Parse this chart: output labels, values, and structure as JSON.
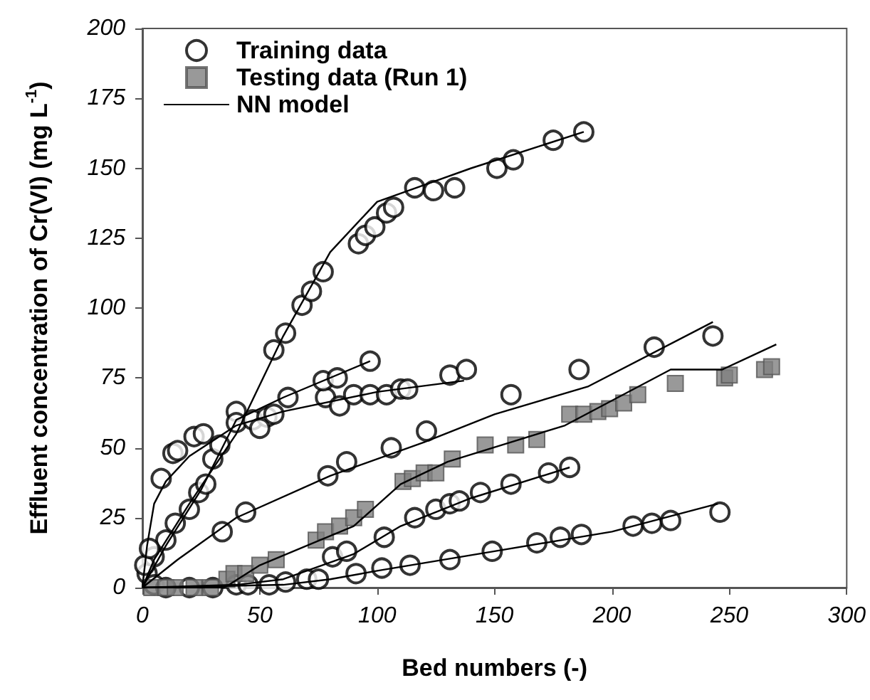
{
  "chart_data": {
    "type": "scatter",
    "xlabel": "Bed numbers (-)",
    "ylabel": "Effluent concentration of Cr(VI) (mg L$^{-1}$)",
    "xlim": [
      0,
      300
    ],
    "ylim": [
      0,
      200
    ],
    "xticks": [
      0,
      50,
      100,
      150,
      200,
      250,
      300
    ],
    "yticks": [
      0,
      25,
      50,
      75,
      100,
      125,
      150,
      175,
      200
    ],
    "legend": "top left",
    "series": [
      {
        "name": "Training data",
        "marker": "circle",
        "color": "#000000",
        "x": [
          2,
          5,
          10,
          14,
          20,
          24,
          27,
          30,
          33,
          40,
          56,
          61,
          68,
          72,
          77,
          92,
          95,
          99,
          104,
          107,
          116,
          124,
          133,
          151,
          158,
          175,
          188,
          8,
          13,
          15,
          22,
          26,
          40,
          47,
          53,
          56,
          62,
          78,
          84,
          90,
          97,
          104,
          110,
          113,
          131,
          138,
          50,
          77,
          83,
          97,
          34,
          44,
          79,
          87,
          106,
          121,
          157,
          186,
          218,
          243,
          54,
          61,
          70,
          75,
          81,
          87,
          103,
          116,
          125,
          131,
          135,
          144,
          157,
          173,
          182,
          91,
          102,
          114,
          131,
          149,
          168,
          178,
          187,
          209,
          217,
          225,
          246,
          1,
          3,
          5,
          10,
          20,
          30,
          40,
          45
        ],
        "values": [
          5,
          11,
          17,
          23,
          28,
          34,
          37,
          46,
          51,
          63,
          85,
          91,
          101,
          106,
          113,
          123,
          126,
          129,
          134,
          136,
          143,
          142,
          143,
          150,
          153,
          160,
          163,
          39,
          48,
          49,
          54,
          55,
          59,
          60,
          61,
          62,
          68,
          68,
          65,
          69,
          69,
          69,
          71,
          71,
          76,
          78,
          57,
          74,
          75,
          81,
          20,
          27,
          40,
          45,
          50,
          56,
          69,
          78,
          86,
          90,
          1,
          2,
          3,
          3,
          11,
          13,
          18,
          25,
          28,
          30,
          31,
          34,
          37,
          41,
          43,
          5,
          7,
          8,
          10,
          13,
          16,
          18,
          19,
          22,
          23,
          24,
          27,
          8,
          14,
          1,
          0,
          0,
          0,
          1,
          1
        ]
      },
      {
        "name": "Testing data (Run 1)",
        "marker": "square",
        "color": "#808080",
        "x": [
          4,
          10,
          14,
          22,
          29,
          36,
          39,
          44,
          50,
          57,
          74,
          78,
          84,
          90,
          95,
          111,
          115,
          120,
          125,
          132,
          146,
          159,
          168,
          182,
          188,
          194,
          199,
          205,
          211,
          227,
          248,
          250,
          265,
          268
        ],
        "values": [
          0,
          0,
          0,
          0,
          0,
          3,
          5,
          5,
          8,
          10,
          17,
          20,
          22,
          25,
          28,
          38,
          39,
          41,
          41,
          46,
          51,
          51,
          53,
          62,
          62,
          63,
          64,
          66,
          69,
          73,
          75,
          76,
          78,
          79
        ]
      },
      {
        "name": "NN model",
        "type": "line",
        "marker": "none",
        "color": "#000000",
        "x": [
          0,
          5,
          20,
          40,
          60,
          80,
          100,
          140,
          188
        ],
        "values": [
          0,
          10,
          30,
          55,
          90,
          120,
          138,
          150,
          163
        ]
      },
      {
        "type": "line",
        "marker": "none",
        "color": "#000000",
        "x": [
          0,
          2,
          5,
          10,
          20,
          40,
          60,
          100,
          137
        ],
        "values": [
          0,
          15,
          30,
          38,
          47,
          58,
          63,
          70,
          74
        ]
      },
      {
        "type": "line",
        "marker": "none",
        "color": "#000000",
        "x": [
          0,
          10,
          25,
          40,
          60,
          97
        ],
        "values": [
          0,
          15,
          35,
          60,
          68,
          81
        ]
      },
      {
        "type": "line",
        "marker": "none",
        "color": "#000000",
        "x": [
          0,
          15,
          40,
          80,
          120,
          150,
          190,
          243
        ],
        "values": [
          0,
          10,
          25,
          40,
          52,
          62,
          72,
          95
        ]
      },
      {
        "type": "line",
        "marker": "none",
        "color": "#000000",
        "x": [
          0,
          40,
          60,
          90,
          110,
          140,
          182
        ],
        "values": [
          0,
          1,
          3,
          12,
          22,
          32,
          43
        ]
      },
      {
        "type": "line",
        "marker": "none",
        "color": "#000000",
        "x": [
          0,
          60,
          80,
          100,
          150,
          200,
          245
        ],
        "values": [
          0,
          1,
          3,
          6,
          13,
          20,
          30
        ]
      },
      {
        "type": "line",
        "marker": "none",
        "color": "#000000",
        "x": [
          0,
          35,
          50,
          90,
          110,
          130,
          180,
          225,
          247,
          270
        ],
        "values": [
          0,
          0,
          8,
          22,
          37,
          45,
          58,
          78,
          78,
          87
        ]
      }
    ]
  }
}
